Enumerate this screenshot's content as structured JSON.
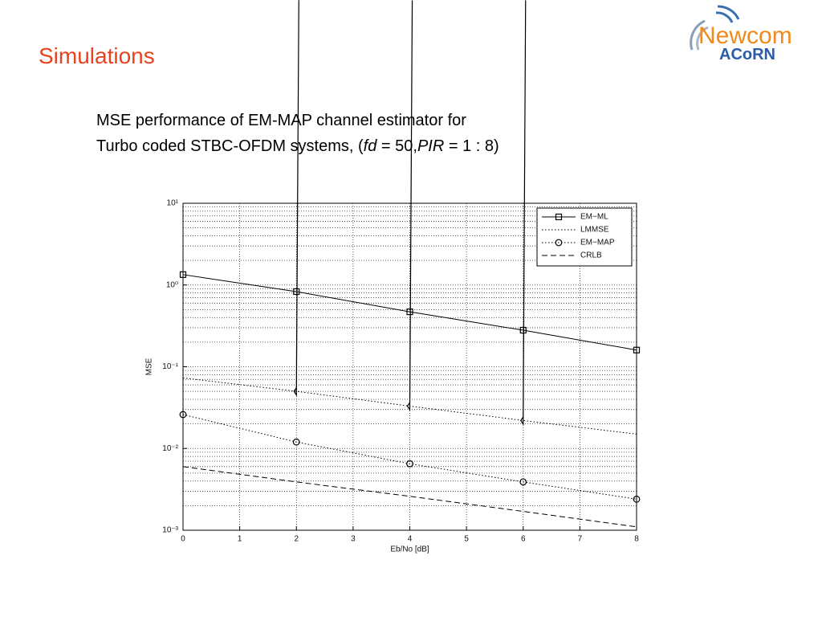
{
  "slide": {
    "title": "Simulations",
    "caption": {
      "line1": "MSE performance of EM-MAP channel estimator for",
      "line2": [
        "Turbo coded STBC-OFDM systems, (",
        "fd",
        " = 50,",
        "PIR",
        " = 1 : 8)"
      ]
    }
  },
  "logo": {
    "name": "Newcom",
    "sub": "ACoRN"
  },
  "chart_data": {
    "type": "line",
    "x_label": "Eb/No [dB]",
    "y_label": "MSE",
    "x": [
      0,
      2,
      4,
      6,
      8
    ],
    "xlim": [
      0,
      8
    ],
    "xticks": [
      0,
      1,
      2,
      3,
      4,
      5,
      6,
      7,
      8
    ],
    "ylim": [
      0.001,
      10
    ],
    "y_scale": "log",
    "yticks": [
      {
        "value": 0.001,
        "label": "10⁻³"
      },
      {
        "value": 0.01,
        "label": "10⁻²"
      },
      {
        "value": 0.1,
        "label": "10⁻¹"
      },
      {
        "value": 1,
        "label": "10⁰"
      },
      {
        "value": 10,
        "label": "10¹"
      }
    ],
    "grid": true,
    "legend": "upper right",
    "series": [
      {
        "name": "EM−ML",
        "color": "#000000",
        "dash": "solid",
        "marker": "square",
        "values": [
          1.34,
          0.83,
          0.47,
          0.28,
          0.16
        ]
      },
      {
        "name": "LMMSE",
        "color": "#000000",
        "dash": "dotted",
        "marker": "diamond",
        "values": [
          0.073,
          0.05,
          0.033,
          0.022,
          0.015
        ]
      },
      {
        "name": "EM−MAP",
        "color": "#000000",
        "dash": "dotted",
        "marker": "circle",
        "values": [
          0.026,
          0.012,
          0.0065,
          0.0039,
          0.0024
        ]
      },
      {
        "name": "CRLB",
        "color": "#000000",
        "dash": "dashed",
        "marker": "none",
        "values": [
          0.006,
          0.0039,
          0.0026,
          0.0017,
          0.0011
        ]
      }
    ]
  }
}
